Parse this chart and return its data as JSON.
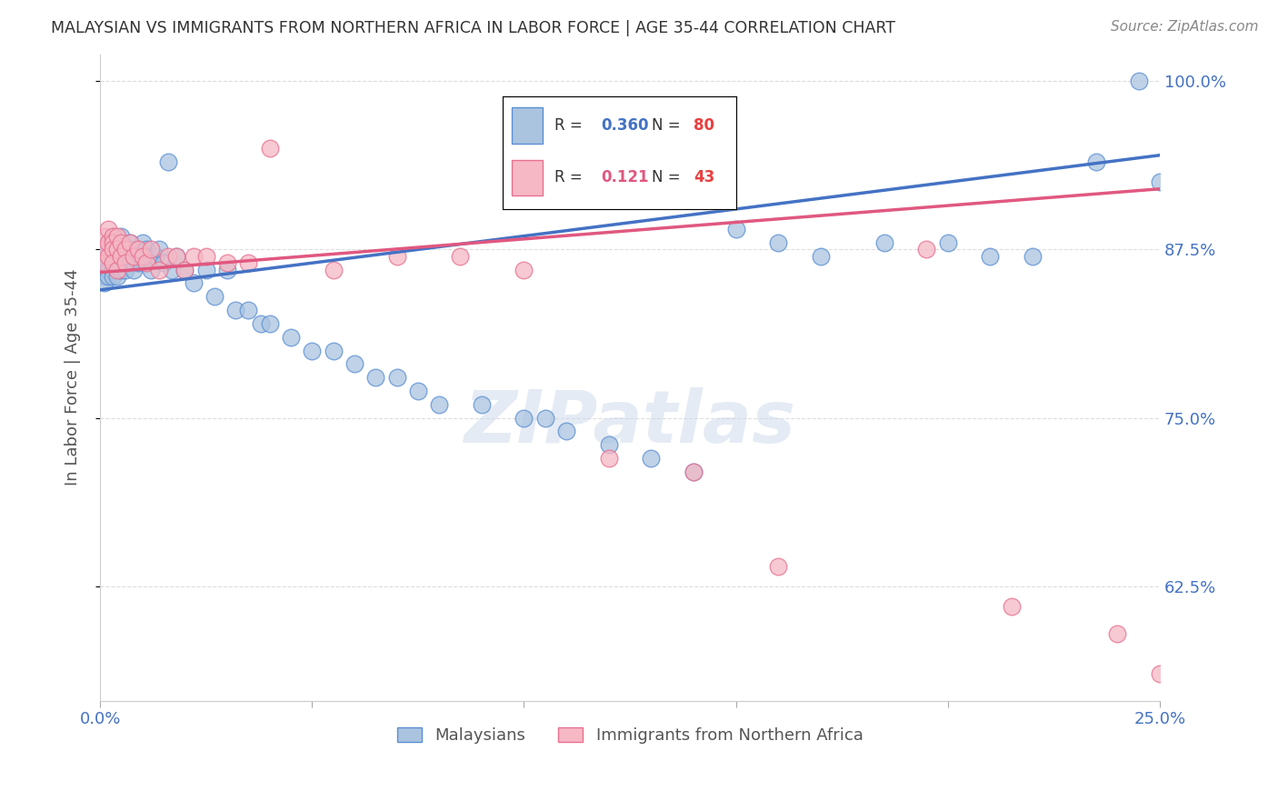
{
  "title": "MALAYSIAN VS IMMIGRANTS FROM NORTHERN AFRICA IN LABOR FORCE | AGE 35-44 CORRELATION CHART",
  "source": "Source: ZipAtlas.com",
  "ylabel": "In Labor Force | Age 35-44",
  "xlim": [
    0.0,
    0.25
  ],
  "ylim": [
    0.54,
    1.02
  ],
  "yticks_right": [
    0.625,
    0.75,
    0.875,
    1.0
  ],
  "ytick_labels_right": [
    "62.5%",
    "75.0%",
    "87.5%",
    "100.0%"
  ],
  "blue_color": "#aac4e0",
  "blue_edge_color": "#5b8fd4",
  "blue_line_color": "#4472c4",
  "pink_color": "#f5b8c4",
  "pink_edge_color": "#e87090",
  "pink_line_color": "#e05880",
  "blue_label": "Malaysians",
  "pink_label": "Immigrants from Northern Africa",
  "watermark": "ZIPatlas",
  "title_color": "#333333",
  "source_color": "#888888",
  "ylabel_color": "#555555",
  "tick_color": "#4472c4",
  "grid_color": "#dddddd",
  "blue_r_val": "0.360",
  "blue_n_val": "80",
  "pink_r_val": "0.121",
  "pink_n_val": "43",
  "n_color": "#e84040",
  "r_label_color": "#333333",
  "blue_points_x": [
    0.001,
    0.001,
    0.001,
    0.001,
    0.002,
    0.002,
    0.002,
    0.002,
    0.002,
    0.003,
    0.003,
    0.003,
    0.003,
    0.003,
    0.003,
    0.004,
    0.004,
    0.004,
    0.004,
    0.004,
    0.005,
    0.005,
    0.005,
    0.005,
    0.006,
    0.006,
    0.006,
    0.007,
    0.007,
    0.007,
    0.008,
    0.008,
    0.009,
    0.009,
    0.01,
    0.01,
    0.011,
    0.011,
    0.012,
    0.012,
    0.013,
    0.014,
    0.015,
    0.016,
    0.017,
    0.018,
    0.02,
    0.022,
    0.025,
    0.027,
    0.03,
    0.032,
    0.035,
    0.038,
    0.04,
    0.045,
    0.05,
    0.055,
    0.06,
    0.065,
    0.07,
    0.075,
    0.08,
    0.09,
    0.1,
    0.105,
    0.11,
    0.12,
    0.13,
    0.14,
    0.15,
    0.16,
    0.17,
    0.185,
    0.2,
    0.21,
    0.22,
    0.235,
    0.245,
    0.25
  ],
  "blue_points_y": [
    0.87,
    0.865,
    0.855,
    0.85,
    0.88,
    0.875,
    0.865,
    0.86,
    0.855,
    0.885,
    0.88,
    0.875,
    0.87,
    0.86,
    0.855,
    0.88,
    0.875,
    0.87,
    0.865,
    0.855,
    0.885,
    0.875,
    0.87,
    0.86,
    0.875,
    0.87,
    0.86,
    0.88,
    0.875,
    0.865,
    0.87,
    0.86,
    0.875,
    0.865,
    0.88,
    0.87,
    0.875,
    0.865,
    0.87,
    0.86,
    0.87,
    0.875,
    0.865,
    0.94,
    0.86,
    0.87,
    0.86,
    0.85,
    0.86,
    0.84,
    0.86,
    0.83,
    0.83,
    0.82,
    0.82,
    0.81,
    0.8,
    0.8,
    0.79,
    0.78,
    0.78,
    0.77,
    0.76,
    0.76,
    0.75,
    0.75,
    0.74,
    0.73,
    0.72,
    0.71,
    0.89,
    0.88,
    0.87,
    0.88,
    0.88,
    0.87,
    0.87,
    0.94,
    1.0,
    0.925
  ],
  "pink_points_x": [
    0.001,
    0.001,
    0.001,
    0.002,
    0.002,
    0.002,
    0.003,
    0.003,
    0.003,
    0.003,
    0.004,
    0.004,
    0.004,
    0.005,
    0.005,
    0.006,
    0.006,
    0.007,
    0.008,
    0.009,
    0.01,
    0.011,
    0.012,
    0.014,
    0.016,
    0.018,
    0.02,
    0.022,
    0.025,
    0.03,
    0.035,
    0.04,
    0.055,
    0.07,
    0.085,
    0.1,
    0.12,
    0.14,
    0.16,
    0.195,
    0.215,
    0.24,
    0.25
  ],
  "pink_points_y": [
    0.885,
    0.875,
    0.865,
    0.89,
    0.88,
    0.87,
    0.885,
    0.88,
    0.875,
    0.865,
    0.885,
    0.875,
    0.86,
    0.88,
    0.87,
    0.875,
    0.865,
    0.88,
    0.87,
    0.875,
    0.87,
    0.865,
    0.875,
    0.86,
    0.87,
    0.87,
    0.86,
    0.87,
    0.87,
    0.865,
    0.865,
    0.95,
    0.86,
    0.87,
    0.87,
    0.86,
    0.72,
    0.71,
    0.64,
    0.875,
    0.61,
    0.59,
    0.56
  ]
}
